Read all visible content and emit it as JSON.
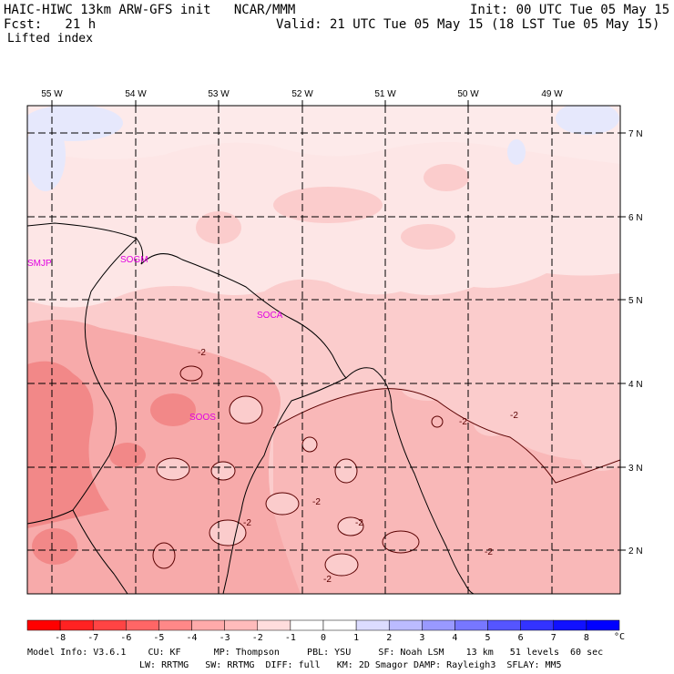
{
  "header": {
    "model_title": "HAIC-HIWC 13km ARW-GFS init   NCAR/MMM",
    "init": "Init: 00 UTC Tue 05 May 15",
    "fcst": "Fcst:   21 h",
    "valid": "Valid: 21 UTC Tue 05 May 15 (18 LST Tue 05 May 15)",
    "field": "Lifted index"
  },
  "map": {
    "lon_labels": [
      "55 W",
      "54 W",
      "53 W",
      "52 W",
      "51 W",
      "50 W",
      "49 W"
    ],
    "lat_labels": [
      "7 N",
      "6 N",
      "5 N",
      "4 N",
      "3 N",
      "2 N"
    ],
    "stations": [
      "SMJP",
      "SOGM",
      "SOCA",
      "SOOS"
    ],
    "contour_labels": [
      "-2",
      "-2",
      "-2",
      "-2",
      "-2",
      "-2",
      "-2",
      "-2"
    ],
    "colors": {
      "very_light_red": "#fde6e6",
      "light_red": "#fbcccc",
      "mid_red": "#f7aaaa",
      "dark_red": "#f28888",
      "blue": "#e6e8fc",
      "station": "#e000e0",
      "contour": "#5a0000"
    }
  },
  "colorbar": {
    "ticks": [
      "-8",
      "-7",
      "-6",
      "-5",
      "-4",
      "-3",
      "-2",
      "-1",
      "0",
      "1",
      "2",
      "3",
      "4",
      "5",
      "6",
      "7",
      "8"
    ],
    "unit": "°C",
    "colors": [
      "#ff0000",
      "#ff2222",
      "#ff4444",
      "#ff6666",
      "#ff8888",
      "#ffaaaa",
      "#ffbbbb",
      "#ffdddd",
      "#ffffff",
      "#ffffff",
      "#dcdcff",
      "#bbbbff",
      "#9999ff",
      "#7777ff",
      "#5555ff",
      "#3333ff",
      "#1111ff",
      "#0000ff"
    ]
  },
  "footer": {
    "line1": "Model Info: V3.6.1    CU: KF      MP: Thompson     PBL: YSU     SF: Noah LSM    13 km   51 levels  60 sec",
    "line2": "LW: RRTMG   SW: RRTMG  DIFF: full   KM: 2D Smagor DAMP: Rayleigh3  SFLAY: MM5"
  }
}
